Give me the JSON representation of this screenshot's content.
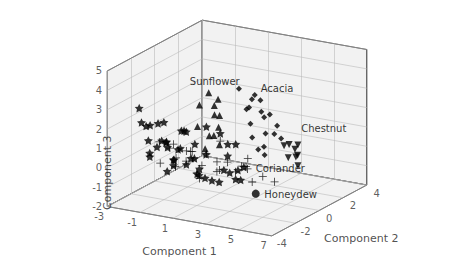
{
  "chart_data": {
    "type": "scatter3d",
    "xlabel": "Component 1",
    "ylabel": "Component 2",
    "zlabel": "Component 3",
    "xlim": [
      -3,
      7
    ],
    "ylim": [
      -4,
      4
    ],
    "zlim": [
      -2,
      5
    ],
    "xticks": [
      -3,
      -1,
      1,
      3,
      5,
      7
    ],
    "yticks": [
      -4,
      -2,
      0,
      2,
      4
    ],
    "zticks": [
      -2,
      -1,
      0,
      1,
      2,
      3,
      4,
      5
    ],
    "grid": true,
    "series": [
      {
        "marker": "star",
        "color": "black",
        "values": [
          [
            -2.5,
            -2.0,
            2.5
          ],
          [
            -2.0,
            -2.5,
            2.0
          ],
          [
            -1.5,
            -1.8,
            1.8
          ],
          [
            -1.0,
            -2.0,
            2.0
          ],
          [
            -2.2,
            -1.5,
            1.5
          ],
          [
            -1.8,
            -2.2,
            1.0
          ],
          [
            -1.2,
            -1.5,
            0.8
          ],
          [
            -0.5,
            -2.5,
            1.2
          ],
          [
            0.0,
            -2.0,
            0.8
          ],
          [
            -2.8,
            -1.0,
            1.2
          ],
          [
            -2.0,
            -0.8,
            0.5
          ],
          [
            -1.5,
            -1.0,
            0.3
          ],
          [
            -1.0,
            -1.2,
            -0.2
          ],
          [
            -0.5,
            -0.8,
            -0.5
          ],
          [
            0.5,
            -1.8,
            0.3
          ],
          [
            1.0,
            -2.2,
            0.5
          ],
          [
            0.8,
            -1.5,
            -0.3
          ],
          [
            -0.8,
            -2.0,
            -0.5
          ],
          [
            0.3,
            -1.0,
            -0.8
          ],
          [
            1.5,
            -2.0,
            -0.5
          ],
          [
            -1.5,
            -0.5,
            -0.8
          ],
          [
            1.2,
            -1.0,
            -1.0
          ],
          [
            2.0,
            -1.5,
            -0.8
          ],
          [
            -0.3,
            -1.5,
            1.5
          ],
          [
            2.5,
            -1.8,
            0.0
          ],
          [
            2.3,
            -1.2,
            0.5
          ],
          [
            3.0,
            -2.0,
            0.0
          ],
          [
            3.5,
            -1.5,
            0.2
          ],
          [
            -2.5,
            -0.5,
            0.0
          ],
          [
            0.5,
            -0.5,
            1.5
          ],
          [
            -1.0,
            -0.3,
            1.0
          ],
          [
            1.8,
            -0.5,
            0.8
          ],
          [
            -0.2,
            -0.5,
            0.5
          ],
          [
            0.7,
            -0.8,
            0.2
          ],
          [
            2.8,
            -0.8,
            -0.8
          ],
          [
            1.2,
            -0.3,
            1.2
          ],
          [
            -0.5,
            -1.5,
            0.5
          ],
          [
            0.2,
            -2.8,
            0.5
          ],
          [
            1.5,
            -2.5,
            -0.2
          ],
          [
            3.0,
            -1.5,
            -0.5
          ],
          [
            -1.5,
            -2.5,
            0.5
          ],
          [
            2.5,
            -0.8,
            1.0
          ],
          [
            -2.0,
            -1.8,
            0.0
          ],
          [
            0.0,
            -1.5,
            1.5
          ],
          [
            3.5,
            -2.0,
            0.2
          ]
        ]
      },
      {
        "marker": "plus",
        "color": "black",
        "values": [
          [
            -2.0,
            -1.0,
            0.5
          ],
          [
            -1.5,
            -0.5,
            0.3
          ],
          [
            -1.0,
            -1.5,
            0.5
          ],
          [
            -0.5,
            -0.8,
            0.2
          ],
          [
            0.0,
            -1.0,
            0.3
          ],
          [
            0.5,
            -0.5,
            0.1
          ],
          [
            -1.8,
            -1.2,
            -0.5
          ],
          [
            -1.2,
            -0.7,
            -0.3
          ],
          [
            -0.8,
            -1.3,
            -0.5
          ],
          [
            0.2,
            -0.9,
            -0.8
          ],
          [
            1.0,
            -0.3,
            -0.3
          ],
          [
            0.8,
            -1.5,
            -0.8
          ],
          [
            2.0,
            -0.8,
            0.0
          ],
          [
            2.5,
            -0.3,
            -0.3
          ],
          [
            1.5,
            -1.0,
            -0.5
          ],
          [
            3.0,
            -0.5,
            -0.3
          ],
          [
            2.8,
            -0.2,
            0.1
          ],
          [
            3.5,
            -0.8,
            -0.8
          ],
          [
            0.3,
            -0.6,
            -0.5
          ],
          [
            -0.3,
            -1.1,
            -0.2
          ],
          [
            1.8,
            -1.2,
            -0.3
          ],
          [
            2.2,
            -0.4,
            -0.6
          ],
          [
            3.2,
            -0.9,
            0.0
          ],
          [
            -0.6,
            -0.3,
            0.0
          ],
          [
            4.0,
            -0.6,
            -0.5
          ],
          [
            4.5,
            -0.3,
            -0.8
          ],
          [
            1.2,
            -0.3,
            0.8
          ]
        ]
      },
      {
        "marker": "diamond",
        "color": "black",
        "values": [
          [
            3.2,
            -1.5,
            4.2
          ],
          [
            3.8,
            -1.0,
            3.8
          ],
          [
            4.0,
            -0.8,
            3.5
          ],
          [
            3.6,
            -1.2,
            3.2
          ],
          [
            4.2,
            -1.0,
            3.0
          ],
          [
            4.5,
            -0.7,
            2.8
          ],
          [
            3.9,
            -1.5,
            2.5
          ],
          [
            4.8,
            -0.5,
            2.2
          ],
          [
            4.6,
            -1.2,
            2.0
          ],
          [
            4.3,
            -0.9,
            2.7
          ],
          [
            3.7,
            -1.1,
            3.6
          ],
          [
            4.7,
            -0.6,
            1.8
          ],
          [
            3.5,
            -0.8,
            1.5
          ],
          [
            4.3,
            -1.4,
            1.2
          ],
          [
            4.0,
            -0.5,
            1.0
          ],
          [
            4.9,
            -0.3,
            1.5
          ],
          [
            4.4,
            -1.0,
            0.8
          ],
          [
            3.3,
            -1.0,
            3.0
          ]
        ]
      },
      {
        "marker": "triangle_up",
        "color": "black",
        "values": [
          [
            1.0,
            -1.0,
            3.5
          ],
          [
            0.8,
            -1.5,
            3.0
          ],
          [
            1.2,
            -0.8,
            2.8
          ],
          [
            1.5,
            -1.2,
            2.5
          ],
          [
            1.3,
            -0.5,
            2.2
          ],
          [
            0.9,
            -1.8,
            2.0
          ],
          [
            1.6,
            -1.0,
            1.8
          ],
          [
            1.4,
            -1.5,
            1.5
          ],
          [
            1.1,
            -0.7,
            1.2
          ],
          [
            1.8,
            -1.2,
            1.0
          ],
          [
            1.5,
            -0.9,
            3.2
          ],
          [
            1.0,
            -1.3,
            0.7
          ]
        ]
      },
      {
        "marker": "triangle_down",
        "color": "black",
        "values": [
          [
            4.5,
            0.5,
            0.8
          ],
          [
            4.8,
            1.0,
            0.5
          ],
          [
            5.0,
            0.8,
            0.2
          ],
          [
            4.6,
            1.5,
            0.0
          ],
          [
            5.2,
            0.7,
            -0.2
          ],
          [
            4.3,
            1.2,
            0.6
          ],
          [
            4.9,
            0.3,
            0.3
          ],
          [
            4.4,
            1.8,
            0.4
          ]
        ]
      },
      {
        "marker": "circle",
        "color": "black",
        "values": [
          [
            3.5,
            -0.5,
            -1.5
          ]
        ]
      }
    ],
    "annotations": [
      {
        "text": "Acacia",
        "x": 3.8,
        "y": -0.5,
        "z": 4.0
      },
      {
        "text": "Sunflower",
        "x": 0.0,
        "y": -1.2,
        "z": 4.0
      },
      {
        "text": "Chestnut",
        "x": 4.6,
        "y": 1.8,
        "z": 1.3
      },
      {
        "text": "Coriander",
        "x": 3.0,
        "y": 0.2,
        "z": -0.5
      },
      {
        "text": "Honeydew",
        "x": 3.8,
        "y": -0.2,
        "z": -1.6
      }
    ]
  }
}
